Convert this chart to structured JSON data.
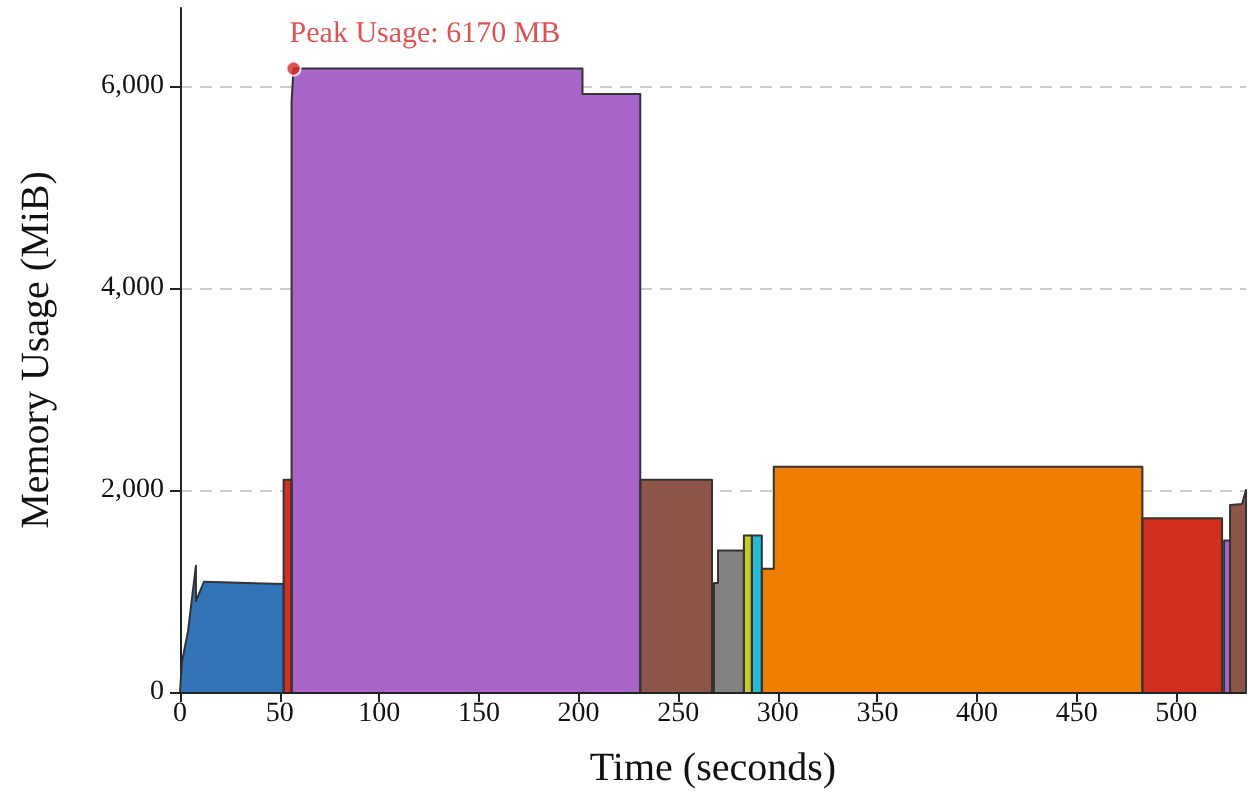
{
  "chart_data": {
    "type": "area",
    "xlabel": "Time (seconds)",
    "ylabel": "Memory Usage (MiB)",
    "xlim": [
      0,
      535
    ],
    "ylim": [
      0,
      6770
    ],
    "xticks": [
      0,
      50,
      100,
      150,
      200,
      250,
      300,
      350,
      400,
      450,
      500
    ],
    "yticks": [
      0,
      {
        "value": 2000,
        "label": "2,000"
      },
      {
        "value": 4000,
        "label": "4,000"
      },
      {
        "value": 6000,
        "label": "6,000"
      }
    ],
    "grid": "y",
    "marker": "none",
    "line_style": "solid",
    "series": [
      {
        "color": "#3274b8",
        "x": [
          0,
          1,
          4,
          8,
          8,
          12,
          52,
          52
        ],
        "values": [
          0,
          300,
          600,
          1250,
          900,
          1090,
          1070,
          0
        ]
      },
      {
        "color": "#cf3020",
        "x": [
          52,
          52,
          56,
          56
        ],
        "values": [
          0,
          2100,
          2100,
          0
        ]
      },
      {
        "color": "#a865c9",
        "x": [
          56,
          56,
          57,
          202,
          202,
          231,
          231
        ],
        "values": [
          0,
          5850,
          6170,
          6170,
          5920,
          5920,
          0
        ]
      },
      {
        "color": "#8e5549",
        "x": [
          231,
          231,
          267,
          267
        ],
        "values": [
          0,
          2100,
          2100,
          0
        ]
      },
      {
        "color": "#828282",
        "x": [
          268,
          268,
          270,
          270,
          283,
          283
        ],
        "values": [
          0,
          1080,
          1080,
          1400,
          1400,
          0
        ]
      },
      {
        "color": "#c9c927",
        "x": [
          283,
          283,
          287,
          287
        ],
        "values": [
          0,
          1550,
          1550,
          0
        ]
      },
      {
        "color": "#26bcd6",
        "x": [
          287,
          287,
          292,
          292
        ],
        "values": [
          0,
          1550,
          1550,
          0
        ]
      },
      {
        "color": "#f07f01",
        "x": [
          292,
          292,
          298,
          298,
          483,
          483
        ],
        "values": [
          0,
          1220,
          1220,
          2230,
          2230,
          0
        ]
      },
      {
        "color": "#d22e1e",
        "x": [
          483,
          483,
          523,
          523
        ],
        "values": [
          0,
          1720,
          1720,
          0
        ]
      },
      {
        "color": "#a865c9",
        "x": [
          524,
          524,
          527,
          527
        ],
        "values": [
          0,
          1500,
          1500,
          0
        ]
      },
      {
        "color": "#8e5549",
        "x": [
          527,
          527,
          533,
          535,
          535
        ],
        "values": [
          0,
          1850,
          1860,
          2000,
          0
        ]
      }
    ],
    "annotations": [
      {
        "text": "Peak Usage: 6170 MB",
        "x": 57,
        "y": 6170
      }
    ]
  }
}
